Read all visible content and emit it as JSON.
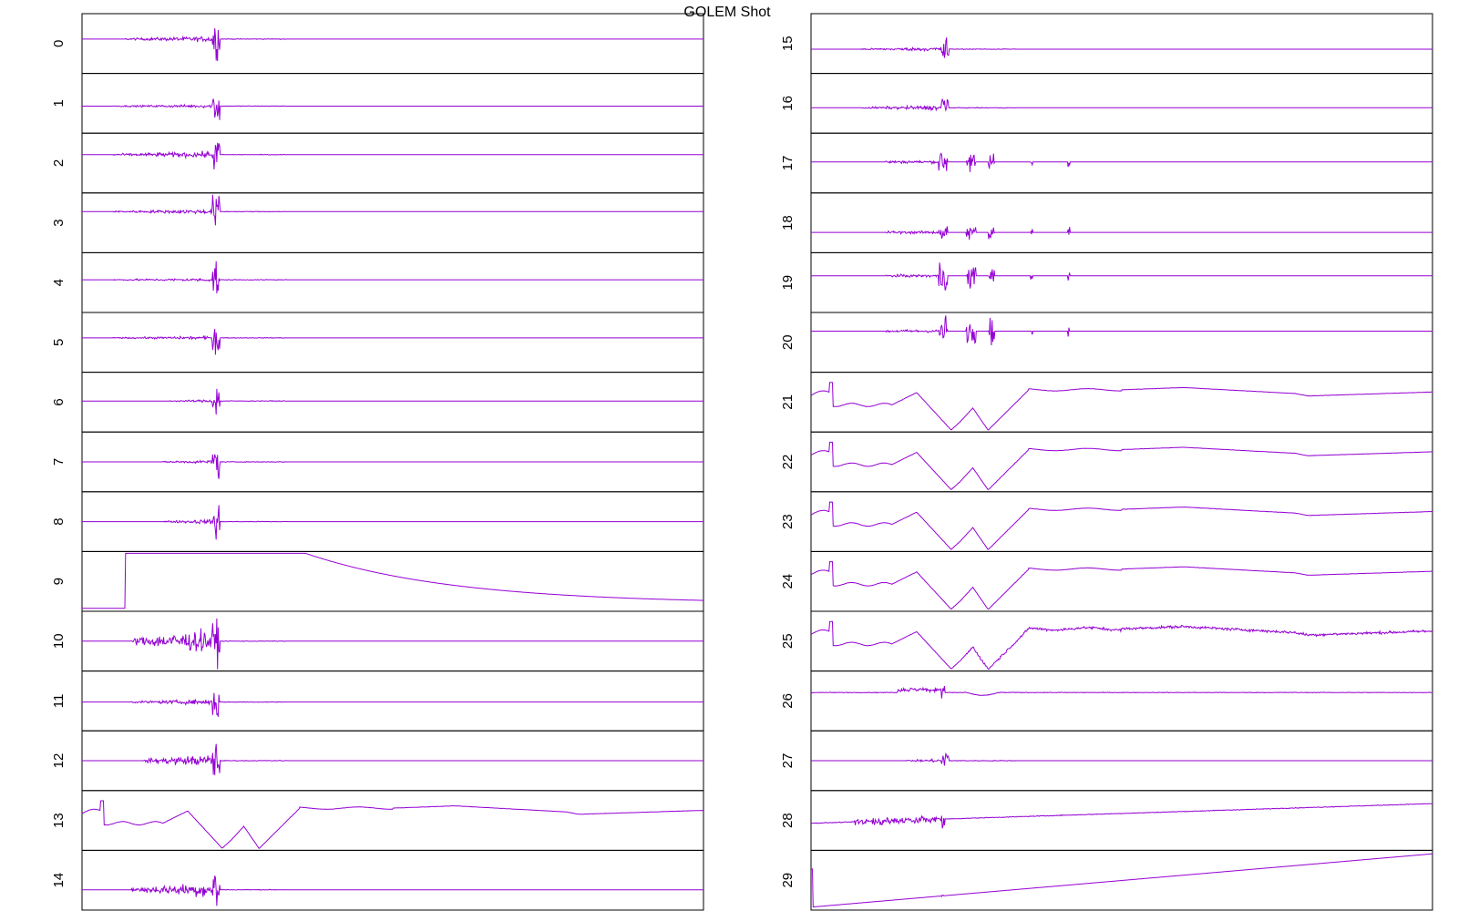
{
  "chart_data": {
    "type": "line",
    "title": "GOLEM Shot",
    "grid": false,
    "legend": "none",
    "series_color": "#9400d3",
    "xlabel": "",
    "ylabel": "",
    "x_range": [
      0,
      1
    ],
    "spike_x_left": 0.21,
    "spike_x_right": 0.212,
    "panels": [
      {
        "label": "0",
        "kind": "noise",
        "base": 0.58,
        "amp": 0.08,
        "start": 0.07,
        "spike": 0.62
      },
      {
        "label": "1",
        "kind": "noise",
        "base": 0.45,
        "amp": 0.05,
        "start": 0.05,
        "spike": 0.55
      },
      {
        "label": "2",
        "kind": "noise",
        "base": 0.65,
        "amp": 0.09,
        "start": 0.05,
        "spike": 0.55
      },
      {
        "label": "3",
        "kind": "noise",
        "base": 0.7,
        "amp": 0.07,
        "start": 0.05,
        "spike": 0.55
      },
      {
        "label": "4",
        "kind": "noise",
        "base": 0.55,
        "amp": 0.05,
        "start": 0.05,
        "spike": 0.6
      },
      {
        "label": "5",
        "kind": "noise",
        "base": 0.58,
        "amp": 0.05,
        "start": 0.05,
        "spike": 0.6
      },
      {
        "label": "6",
        "kind": "noise",
        "base": 0.52,
        "amp": 0.04,
        "start": 0.14,
        "spike": 0.55
      },
      {
        "label": "7",
        "kind": "noise",
        "base": 0.5,
        "amp": 0.05,
        "start": 0.13,
        "spike": 0.6
      },
      {
        "label": "8",
        "kind": "noise",
        "base": 0.5,
        "amp": 0.07,
        "start": 0.13,
        "spike": 0.65
      },
      {
        "label": "9",
        "kind": "step_recovery",
        "base": 0.02
      },
      {
        "label": "10",
        "kind": "noise",
        "base": 0.5,
        "amp": 0.35,
        "start": 0.08,
        "spike": 0.6
      },
      {
        "label": "11",
        "kind": "noise",
        "base": 0.48,
        "amp": 0.08,
        "start": 0.08,
        "spike": 0.6
      },
      {
        "label": "12",
        "kind": "noise",
        "base": 0.5,
        "amp": 0.18,
        "start": 0.1,
        "spike": 0.6
      },
      {
        "label": "13",
        "kind": "wave",
        "offset": 0.0
      },
      {
        "label": "14",
        "kind": "noise",
        "base": 0.33,
        "amp": 0.22,
        "start": 0.08,
        "spike": 0.65
      },
      {
        "label": "15",
        "kind": "noise",
        "base": 0.4,
        "amp": 0.06,
        "start": 0.08,
        "spike": 0.55
      },
      {
        "label": "16",
        "kind": "noise",
        "base": 0.42,
        "amp": 0.07,
        "start": 0.08,
        "spike": 0.55
      },
      {
        "label": "17",
        "kind": "bursts",
        "base": 0.52,
        "amp": 0.2
      },
      {
        "label": "18",
        "kind": "bursts",
        "base": 0.33,
        "amp": 0.15
      },
      {
        "label": "19",
        "kind": "bursts",
        "base": 0.62,
        "amp": 0.22
      },
      {
        "label": "20",
        "kind": "bursts",
        "base": 0.7,
        "amp": 0.22
      },
      {
        "label": "21",
        "kind": "wave",
        "offset": 0.0
      },
      {
        "label": "22",
        "kind": "wave",
        "offset": 0.0
      },
      {
        "label": "23",
        "kind": "wave",
        "offset": 0.0
      },
      {
        "label": "24",
        "kind": "wave",
        "offset": 0.0
      },
      {
        "label": "25",
        "kind": "wave_noisy",
        "offset": 0.0
      },
      {
        "label": "26",
        "kind": "small_wave",
        "base": 0.65
      },
      {
        "label": "27",
        "kind": "noise",
        "base": 0.5,
        "amp": 0.05,
        "start": 0.15,
        "spike": 0.45
      },
      {
        "label": "28",
        "kind": "decay_noise",
        "base": 0.45
      },
      {
        "label": "29",
        "kind": "ramp_down",
        "base": 0.0
      }
    ]
  }
}
